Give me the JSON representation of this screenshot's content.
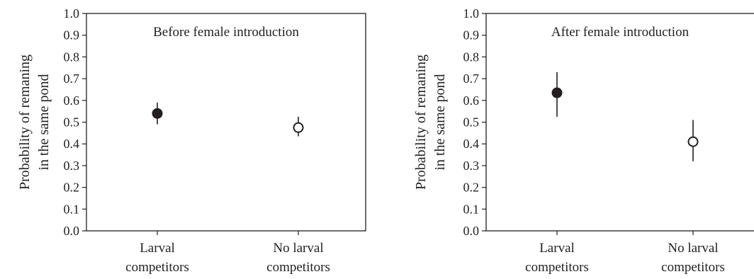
{
  "chart_data": [
    {
      "type": "scatter",
      "title": "Before female introduction",
      "ylabel": [
        "Probability of remaning",
        "in the same pond"
      ],
      "ylim": [
        0,
        1
      ],
      "yticks": [
        "0.0",
        "0.1",
        "0.2",
        "0.3",
        "0.4",
        "0.5",
        "0.6",
        "0.7",
        "0.8",
        "0.9",
        "1.0"
      ],
      "categories": [
        [
          "Larval",
          "competitors"
        ],
        [
          "No larval",
          "competitors"
        ]
      ],
      "points": [
        {
          "value": 0.54,
          "lower": 0.49,
          "upper": 0.59,
          "marker": "filled"
        },
        {
          "value": 0.475,
          "lower": 0.435,
          "upper": 0.525,
          "marker": "open"
        }
      ]
    },
    {
      "type": "scatter",
      "title": "After female introduction",
      "ylabel": [
        "Probability of remaning",
        "in the same pond"
      ],
      "ylim": [
        0,
        1
      ],
      "yticks": [
        "0.0",
        "0.1",
        "0.2",
        "0.3",
        "0.4",
        "0.5",
        "0.6",
        "0.7",
        "0.8",
        "0.9",
        "1.0"
      ],
      "categories": [
        [
          "Larval",
          "competitors"
        ],
        [
          "No larval",
          "competitors"
        ]
      ],
      "points": [
        {
          "value": 0.635,
          "lower": 0.525,
          "upper": 0.73,
          "marker": "filled"
        },
        {
          "value": 0.41,
          "lower": 0.32,
          "upper": 0.51,
          "marker": "open"
        }
      ]
    }
  ]
}
